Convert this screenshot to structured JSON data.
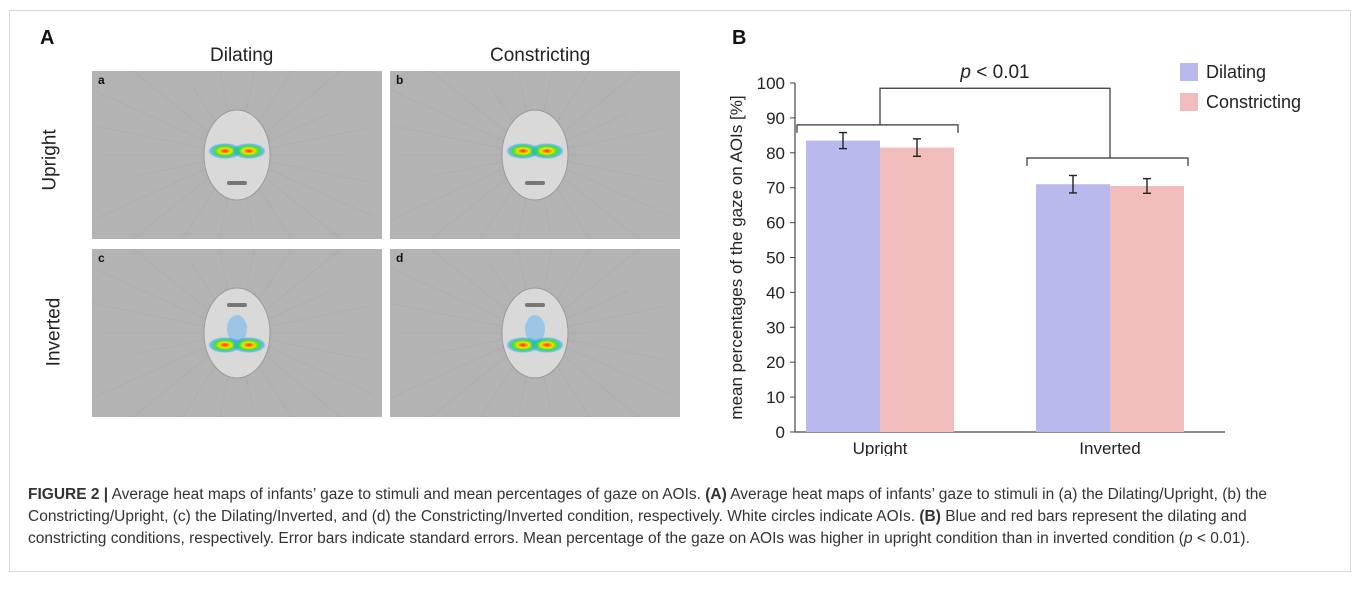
{
  "panel_a": {
    "letter": "A",
    "columns": [
      "Dilating",
      "Constricting"
    ],
    "rows": [
      "Upright",
      "Inverted"
    ],
    "panel_letters": [
      "a",
      "b",
      "c",
      "d"
    ],
    "colors": {
      "background": "#b3b3b3",
      "face": "#d9d9d9"
    }
  },
  "panel_b": {
    "letter": "B"
  },
  "chart_data": {
    "type": "bar",
    "categories": [
      "Upright",
      "Inverted"
    ],
    "series": [
      {
        "name": "Dilating",
        "values": [
          83.5,
          71
        ],
        "errors": [
          2.3,
          2.5
        ],
        "color": "#b9b9ee"
      },
      {
        "name": "Constricting",
        "values": [
          81.5,
          70.5
        ],
        "errors": [
          2.5,
          2.1
        ],
        "color": "#f0bcbc"
      }
    ],
    "ylabel": "mean percentages of the gaze on AOIs [%]",
    "ylim": [
      0,
      100
    ],
    "yticks": [
      0,
      10,
      20,
      30,
      40,
      50,
      60,
      70,
      80,
      90,
      100
    ],
    "annotation": {
      "p_symbol": "p",
      "p_rest": " < 0.01"
    },
    "legend_position": "top-right",
    "grid": false
  },
  "caption": {
    "label": "FIGURE 2 |",
    "intro": " Average heat maps of infants’ gaze to stimuli and mean percentages of gaze on AOIs. ",
    "a_label": "(A)",
    "a_text": " Average heat maps of infants’ gaze to stimuli in (a) the Dilating/Upright, (b) the Constricting/Upright, (c) the Dilating/Inverted, and (d) the Constricting/Inverted condition, respectively. White circles indicate AOIs. ",
    "b_label": "(B)",
    "b_text": " Blue and red bars represent the dilating and constricting conditions, respectively. Error bars indicate standard errors. Mean percentage of the gaze on AOIs was higher in upright condition than in inverted condition (",
    "p_symbol": "p",
    "p_rest": " < 0.01)."
  }
}
